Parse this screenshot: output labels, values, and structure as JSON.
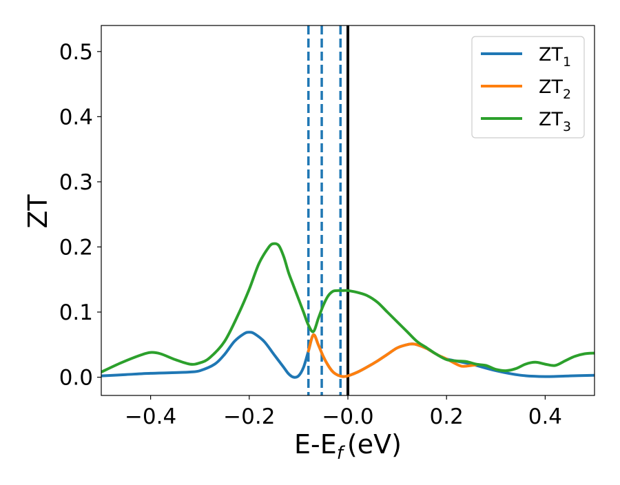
{
  "chart_data": {
    "type": "line",
    "title": "",
    "xlabel": "E-E",
    "xlabel_sub": "f",
    "xlabel_units": "(eV)",
    "ylabel": "ZT",
    "xlim": [
      -0.5,
      0.5
    ],
    "ylim": [
      -0.028,
      0.54
    ],
    "xticks": [
      -0.4,
      -0.2,
      0.0,
      0.2,
      0.4
    ],
    "xtick_labels": [
      "−0.4",
      "−0.2",
      "−0.0",
      "0.2",
      "0.4"
    ],
    "yticks": [
      0.0,
      0.1,
      0.2,
      0.3,
      0.4,
      0.5
    ],
    "ytick_labels": [
      "0.0",
      "0.1",
      "0.2",
      "0.3",
      "0.4",
      "0.5"
    ],
    "grid": false,
    "legend_position": "top-right",
    "vlines_dashed": [
      -0.08,
      -0.053,
      -0.015
    ],
    "vline_solid": 0.0,
    "series": [
      {
        "name": "ZT",
        "sub": "1",
        "color": "#1f77b4",
        "x": [
          -0.5,
          -0.45,
          -0.4,
          -0.35,
          -0.32,
          -0.3,
          -0.27,
          -0.25,
          -0.23,
          -0.21,
          -0.2,
          -0.19,
          -0.17,
          -0.15,
          -0.13,
          -0.12,
          -0.11,
          -0.1,
          -0.09,
          -0.08,
          -0.07,
          -0.06,
          -0.05,
          -0.04,
          -0.03,
          -0.02,
          -0.01,
          0.0,
          0.02,
          0.04,
          0.06,
          0.08,
          0.1,
          0.12,
          0.13,
          0.14,
          0.16,
          0.18,
          0.2,
          0.25,
          0.3,
          0.35,
          0.4,
          0.45,
          0.5
        ],
        "y": [
          0.002,
          0.004,
          0.006,
          0.007,
          0.008,
          0.01,
          0.02,
          0.035,
          0.055,
          0.067,
          0.069,
          0.067,
          0.055,
          0.035,
          0.015,
          0.005,
          0.0,
          0.002,
          0.015,
          0.04,
          0.065,
          0.05,
          0.032,
          0.018,
          0.008,
          0.003,
          0.001,
          0.002,
          0.008,
          0.016,
          0.025,
          0.035,
          0.045,
          0.05,
          0.051,
          0.05,
          0.044,
          0.035,
          0.028,
          0.02,
          0.01,
          0.003,
          0.001,
          0.002,
          0.003
        ]
      },
      {
        "name": "ZT",
        "sub": "2",
        "color": "#ff7f0e",
        "x": [
          -0.08,
          -0.07,
          -0.06,
          -0.05,
          -0.04,
          -0.03,
          -0.02,
          -0.01,
          0.0,
          0.02,
          0.04,
          0.06,
          0.08,
          0.1,
          0.12,
          0.13,
          0.14,
          0.16,
          0.18,
          0.2,
          0.22,
          0.23,
          0.24,
          0.26
        ],
        "y": [
          0.04,
          0.065,
          0.05,
          0.032,
          0.018,
          0.008,
          0.003,
          0.001,
          0.002,
          0.008,
          0.016,
          0.025,
          0.035,
          0.045,
          0.05,
          0.051,
          0.05,
          0.044,
          0.035,
          0.028,
          0.02,
          0.017,
          0.017,
          0.019
        ]
      },
      {
        "name": "ZT",
        "sub": "3",
        "color": "#2ca02c",
        "x": [
          -0.5,
          -0.46,
          -0.42,
          -0.4,
          -0.38,
          -0.35,
          -0.32,
          -0.3,
          -0.28,
          -0.25,
          -0.22,
          -0.2,
          -0.18,
          -0.16,
          -0.15,
          -0.14,
          -0.13,
          -0.12,
          -0.11,
          -0.1,
          -0.09,
          -0.08,
          -0.07,
          -0.06,
          -0.05,
          -0.04,
          -0.03,
          -0.02,
          -0.01,
          0.0,
          0.02,
          0.04,
          0.06,
          0.08,
          0.1,
          0.12,
          0.14,
          0.16,
          0.18,
          0.2,
          0.22,
          0.24,
          0.26,
          0.28,
          0.3,
          0.32,
          0.34,
          0.36,
          0.38,
          0.4,
          0.42,
          0.44,
          0.46,
          0.48,
          0.5
        ],
        "y": [
          0.008,
          0.022,
          0.034,
          0.038,
          0.036,
          0.027,
          0.02,
          0.022,
          0.03,
          0.055,
          0.1,
          0.135,
          0.175,
          0.2,
          0.205,
          0.202,
          0.185,
          0.16,
          0.14,
          0.12,
          0.1,
          0.08,
          0.07,
          0.09,
          0.11,
          0.125,
          0.132,
          0.133,
          0.133,
          0.133,
          0.13,
          0.125,
          0.115,
          0.1,
          0.085,
          0.07,
          0.055,
          0.045,
          0.035,
          0.027,
          0.025,
          0.024,
          0.02,
          0.018,
          0.012,
          0.01,
          0.013,
          0.02,
          0.023,
          0.02,
          0.018,
          0.025,
          0.032,
          0.036,
          0.037
        ]
      }
    ]
  }
}
